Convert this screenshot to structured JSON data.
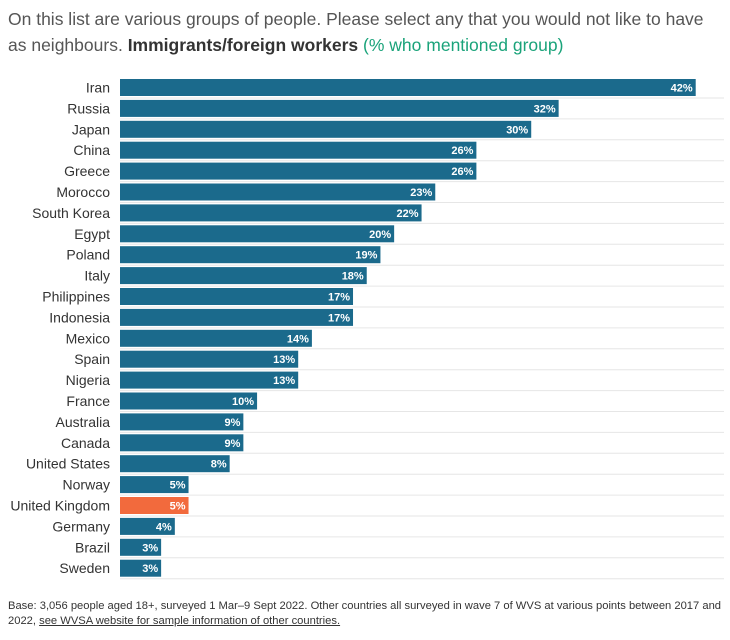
{
  "title": {
    "text": "On this list are various groups of people. Please select any that you would not like to have as neighbours.",
    "bold": "Immigrants/foreign workers",
    "note": "(% who mentioned group)"
  },
  "colors": {
    "bar": "#1b6a8c",
    "highlight": "#f26a3d",
    "grid": "#e6e6e6",
    "label": "#333333",
    "value": "#ffffff"
  },
  "chart_data": {
    "type": "bar",
    "orientation": "horizontal",
    "categories": [
      "Iran",
      "Russia",
      "Japan",
      "China",
      "Greece",
      "Morocco",
      "South Korea",
      "Egypt",
      "Poland",
      "Italy",
      "Philippines",
      "Indonesia",
      "Mexico",
      "Spain",
      "Nigeria",
      "France",
      "Australia",
      "Canada",
      "United States",
      "Norway",
      "United Kingdom",
      "Germany",
      "Brazil",
      "Sweden"
    ],
    "values": [
      42,
      32,
      30,
      26,
      26,
      23,
      22,
      20,
      19,
      18,
      17,
      17,
      14,
      13,
      13,
      10,
      9,
      9,
      8,
      5,
      5,
      4,
      3,
      3
    ],
    "value_labels": [
      "42%",
      "32%",
      "30%",
      "26%",
      "26%",
      "23%",
      "22%",
      "20%",
      "19%",
      "18%",
      "17%",
      "17%",
      "14%",
      "13%",
      "13%",
      "10%",
      "9%",
      "9%",
      "8%",
      "5%",
      "5%",
      "4%",
      "3%",
      "3%"
    ],
    "highlight": "United Kingdom",
    "xlim": [
      0,
      45
    ],
    "grid": true,
    "legend": "none"
  },
  "footer": {
    "text": "Base: 3,056 people aged 18+, surveyed 1 Mar–9 Sept 2022. Other countries all surveyed in wave 7 of WVS at various points between 2017 and 2022,",
    "link": "see WVSA website for sample information of other countries."
  }
}
